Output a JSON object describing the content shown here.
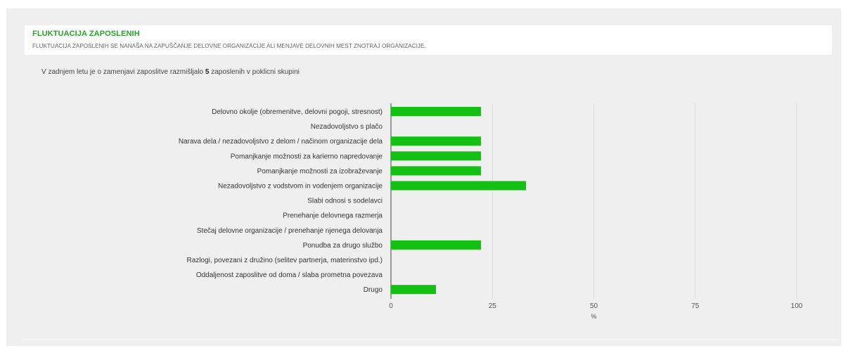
{
  "header": {
    "title": "FLUKTUACIJA ZAPOSLENIH",
    "subtitle": "FLUKTUACIJA ZAPOSLENIH SE NANAŠA NA ZAPUŠČANJE DELOVNE ORGANIZACIJE ALI MENJAVE DELOVNIH MEST ZNOTRAJ ORGANIZACIJE."
  },
  "summary": {
    "before": "V zadnjem letu je o zamenjavi zaposlitve razmišljalo ",
    "count": "5",
    "after": " zaposlenih v poklicni skupini"
  },
  "colors": {
    "bar": "#15c015",
    "grid": "#dcdcdc",
    "title": "#2aa32a"
  },
  "chart_data": {
    "type": "bar",
    "orientation": "horizontal",
    "categories": [
      "Delovno okolje (obremenitve, delovni pogoji, stresnost)",
      "Nezadovoljstvo s plačo",
      "Narava dela / nezadovoljstvo z delom / načinom organizacije dela",
      "Pomanjkanje možnosti za karierno napredovanje",
      "Pomanjkanje možnosti za izobraževanje",
      "Nezadovoljstvo z vodstvom in vodenjem organizacije",
      "Slabi odnosi s sodelavci",
      "Prenehanje delovnega razmerja",
      "Stečaj delovne organizacije / prenehanje njenega delovanja",
      "Ponudba za drugo službo",
      "Razlogi, povezani z družino (selitev partnerja, materinstvo ipd.)",
      "Oddaljenost zaposlitve od doma / slaba prometna povezava",
      "Drugo"
    ],
    "values": [
      22.2,
      0,
      22.2,
      22.2,
      22.2,
      33.3,
      0,
      0,
      0,
      22.2,
      0,
      0,
      11.1
    ],
    "xlabel": "%",
    "xlim": [
      0,
      100
    ],
    "xticks": [
      "0",
      "25",
      "50",
      "75",
      "100"
    ],
    "grid": true
  }
}
